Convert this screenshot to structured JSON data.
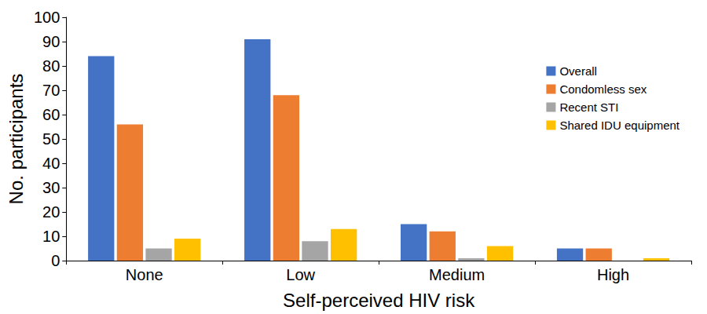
{
  "chart_data": {
    "type": "bar",
    "xlabel": "Self-perceived HIV risk",
    "ylabel": "No. participants",
    "categories": [
      "None",
      "Low",
      "Medium",
      "High"
    ],
    "series": [
      {
        "name": "Overall",
        "color": "#4472c4",
        "values": [
          84,
          91,
          15,
          5
        ]
      },
      {
        "name": "Condomless sex",
        "color": "#ed7d31",
        "values": [
          56,
          68,
          12,
          5
        ]
      },
      {
        "name": "Recent STI",
        "color": "#a5a5a5",
        "values": [
          5,
          8,
          1,
          0
        ]
      },
      {
        "name": "Shared IDU equipment",
        "color": "#ffc000",
        "values": [
          9,
          13,
          6,
          1
        ]
      }
    ],
    "ylim": [
      0,
      100
    ],
    "yticks": [
      0,
      10,
      20,
      30,
      40,
      50,
      60,
      70,
      80,
      90,
      100
    ],
    "grid": false,
    "legend": "upper right"
  }
}
